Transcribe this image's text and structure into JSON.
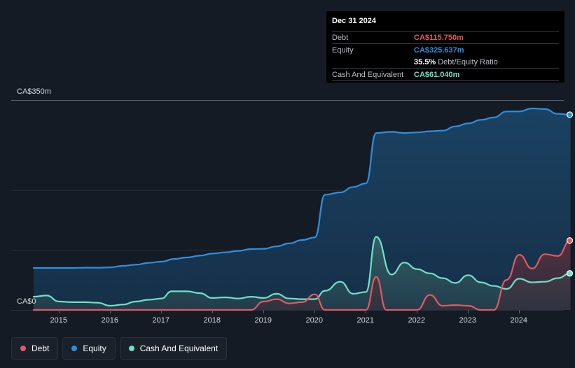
{
  "chart_data": {
    "type": "area",
    "title": "",
    "ylabel": "",
    "xlabel": "",
    "ylim": [
      0,
      350
    ],
    "y_ticks": [
      {
        "value": 350,
        "label": "CA$350m"
      },
      {
        "value": 0,
        "label": "CA$0"
      }
    ],
    "x_ticks": [
      {
        "value": 2015,
        "label": "2015"
      },
      {
        "value": 2016,
        "label": "2016"
      },
      {
        "value": 2017,
        "label": "2017"
      },
      {
        "value": 2018,
        "label": "2018"
      },
      {
        "value": 2019,
        "label": "2019"
      },
      {
        "value": 2020,
        "label": "2020"
      },
      {
        "value": 2021,
        "label": "2021"
      },
      {
        "value": 2022,
        "label": "2022"
      },
      {
        "value": 2023,
        "label": "2023"
      },
      {
        "value": 2024,
        "label": "2024"
      }
    ],
    "xlim": [
      2014.5,
      2025.0
    ],
    "gridlines": [
      350,
      200,
      100,
      0
    ],
    "series": [
      {
        "name": "Equity",
        "color": "#2d8fe0",
        "x": [
          2014.5,
          2015.0,
          2015.25,
          2015.5,
          2015.75,
          2016.0,
          2016.25,
          2016.5,
          2016.75,
          2017.0,
          2017.25,
          2017.5,
          2017.75,
          2018.0,
          2018.25,
          2018.5,
          2018.75,
          2019.0,
          2019.25,
          2019.5,
          2019.75,
          2020.0,
          2020.2,
          2020.5,
          2020.75,
          2021.0,
          2021.2,
          2021.5,
          2021.75,
          2022.0,
          2022.25,
          2022.5,
          2022.75,
          2023.0,
          2023.25,
          2023.5,
          2023.75,
          2024.0,
          2024.25,
          2024.5,
          2024.75,
          2025.0
        ],
        "values": [
          70,
          70,
          70,
          70.5,
          70.5,
          71,
          73.5,
          75.5,
          78.5,
          80.5,
          85,
          87.5,
          90.5,
          94,
          96,
          98.5,
          101.5,
          102,
          106,
          111,
          116.5,
          121,
          192,
          196,
          205,
          211,
          295,
          297,
          295,
          296,
          298,
          299,
          306,
          311,
          317,
          321,
          331,
          331,
          336,
          335,
          327,
          325.6
        ]
      },
      {
        "name": "Cash And Equivalent",
        "color": "#6ee0c8",
        "x": [
          2014.5,
          2014.75,
          2015.0,
          2015.25,
          2015.5,
          2015.75,
          2016.0,
          2016.25,
          2016.5,
          2016.75,
          2017.0,
          2017.2,
          2017.5,
          2017.75,
          2018.0,
          2018.25,
          2018.5,
          2018.75,
          2019.0,
          2019.25,
          2019.5,
          2019.75,
          2020.0,
          2020.2,
          2020.5,
          2020.75,
          2021.0,
          2021.2,
          2021.5,
          2021.75,
          2022.0,
          2022.25,
          2022.5,
          2022.75,
          2023.0,
          2023.25,
          2023.5,
          2023.75,
          2024.0,
          2024.25,
          2024.5,
          2024.75,
          2025.0
        ],
        "values": [
          22,
          24,
          14,
          13,
          13,
          12,
          7,
          9,
          14,
          17,
          19,
          31,
          31,
          28,
          20,
          21,
          19,
          22,
          20,
          27,
          19,
          18,
          18,
          32,
          47,
          27,
          30,
          122,
          59,
          79,
          68,
          61,
          53,
          45,
          58,
          46,
          40,
          35,
          52,
          46,
          47,
          53,
          61
        ]
      },
      {
        "name": "Debt",
        "color": "#e05a5f",
        "x": [
          2014.5,
          2014.75,
          2015.0,
          2015.5,
          2016.0,
          2016.5,
          2017.0,
          2017.5,
          2018.0,
          2018.5,
          2018.75,
          2019.0,
          2019.25,
          2019.5,
          2019.75,
          2020.0,
          2020.2,
          2020.5,
          2020.75,
          2021.0,
          2021.2,
          2021.4,
          2021.75,
          2022.0,
          2022.25,
          2022.5,
          2022.75,
          2023.0,
          2023.25,
          2023.5,
          2023.75,
          2024.0,
          2024.25,
          2024.5,
          2024.75,
          2025.0
        ],
        "values": [
          0,
          0,
          0,
          0,
          0,
          0,
          0,
          0,
          0,
          0,
          0,
          14,
          18,
          11,
          13,
          26,
          0,
          0,
          0,
          0,
          55,
          0,
          0,
          0,
          25,
          7,
          8,
          7,
          0,
          0,
          50,
          92,
          69,
          93,
          90,
          115.75
        ]
      }
    ]
  },
  "tooltip": {
    "date": "Dec 31 2024",
    "debt_label": "Debt",
    "debt_value": "CA$115.750m",
    "equity_label": "Equity",
    "equity_value": "CA$325.637m",
    "ratio_value": "35.5%",
    "ratio_label": "Debt/Equity Ratio",
    "cash_label": "Cash And Equivalent",
    "cash_value": "CA$61.040m"
  },
  "legend": [
    {
      "label": "Debt",
      "color": "#e05a5f"
    },
    {
      "label": "Equity",
      "color": "#2d8fe0"
    },
    {
      "label": "Cash And Equivalent",
      "color": "#6ee0c8"
    }
  ]
}
